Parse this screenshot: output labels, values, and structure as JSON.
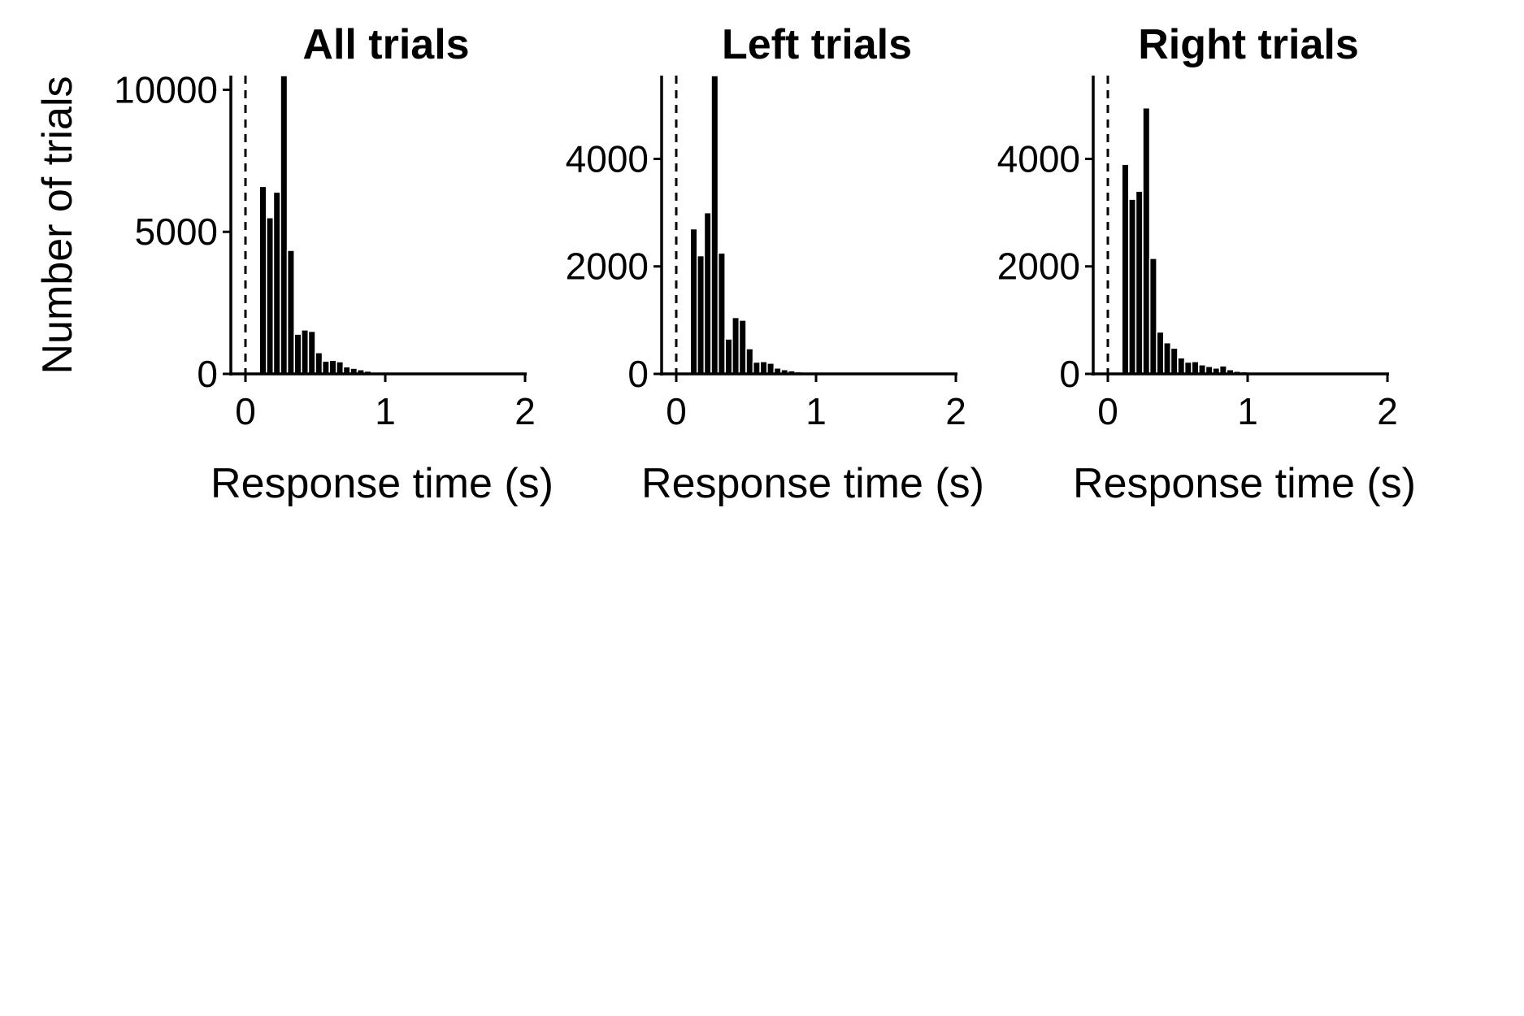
{
  "chart_data": [
    {
      "type": "bar",
      "title": "All trials",
      "xlabel": "Response time (s)",
      "ylabel": "Number of trials",
      "xlim": [
        -0.1,
        2.0
      ],
      "ylim": [
        0,
        10500
      ],
      "xticks": [
        0,
        1,
        2
      ],
      "yticks": [
        0,
        5000,
        10000
      ],
      "reference_line_x": 0,
      "bin_width": 0.05,
      "bins": [
        0.1,
        0.15,
        0.2,
        0.25,
        0.3,
        0.35,
        0.4,
        0.45,
        0.5,
        0.55,
        0.6,
        0.65,
        0.7,
        0.75,
        0.8,
        0.85,
        0.9,
        0.95
      ],
      "values": [
        6600,
        5500,
        6400,
        10500,
        4350,
        1400,
        1550,
        1500,
        750,
        450,
        480,
        430,
        250,
        200,
        150,
        100,
        60,
        30
      ]
    },
    {
      "type": "bar",
      "title": "Left trials",
      "xlabel": "Response time (s)",
      "ylabel": "",
      "xlim": [
        -0.1,
        2.0
      ],
      "ylim": [
        0,
        5550
      ],
      "xticks": [
        0,
        1,
        2
      ],
      "yticks": [
        0,
        2000,
        4000
      ],
      "reference_line_x": 0,
      "bin_width": 0.05,
      "bins": [
        0.1,
        0.15,
        0.2,
        0.25,
        0.3,
        0.35,
        0.4,
        0.45,
        0.5,
        0.55,
        0.6,
        0.65,
        0.7,
        0.75,
        0.8,
        0.85,
        0.9,
        0.95
      ],
      "values": [
        2700,
        2200,
        3000,
        5550,
        2250,
        650,
        1050,
        1000,
        470,
        220,
        230,
        200,
        110,
        80,
        60,
        40,
        20,
        10
      ]
    },
    {
      "type": "bar",
      "title": "Right trials",
      "xlabel": "Response time (s)",
      "ylabel": "",
      "xlim": [
        -0.1,
        2.0
      ],
      "ylim": [
        0,
        5550
      ],
      "xticks": [
        0,
        1,
        2
      ],
      "yticks": [
        0,
        2000,
        4000
      ],
      "reference_line_x": 0,
      "bin_width": 0.05,
      "bins": [
        0.1,
        0.15,
        0.2,
        0.25,
        0.3,
        0.35,
        0.4,
        0.45,
        0.5,
        0.55,
        0.6,
        0.65,
        0.7,
        0.75,
        0.8,
        0.85,
        0.9,
        0.95
      ],
      "values": [
        3900,
        3250,
        3400,
        4950,
        2150,
        780,
        580,
        480,
        300,
        220,
        230,
        170,
        140,
        110,
        150,
        80,
        50,
        40
      ]
    }
  ]
}
